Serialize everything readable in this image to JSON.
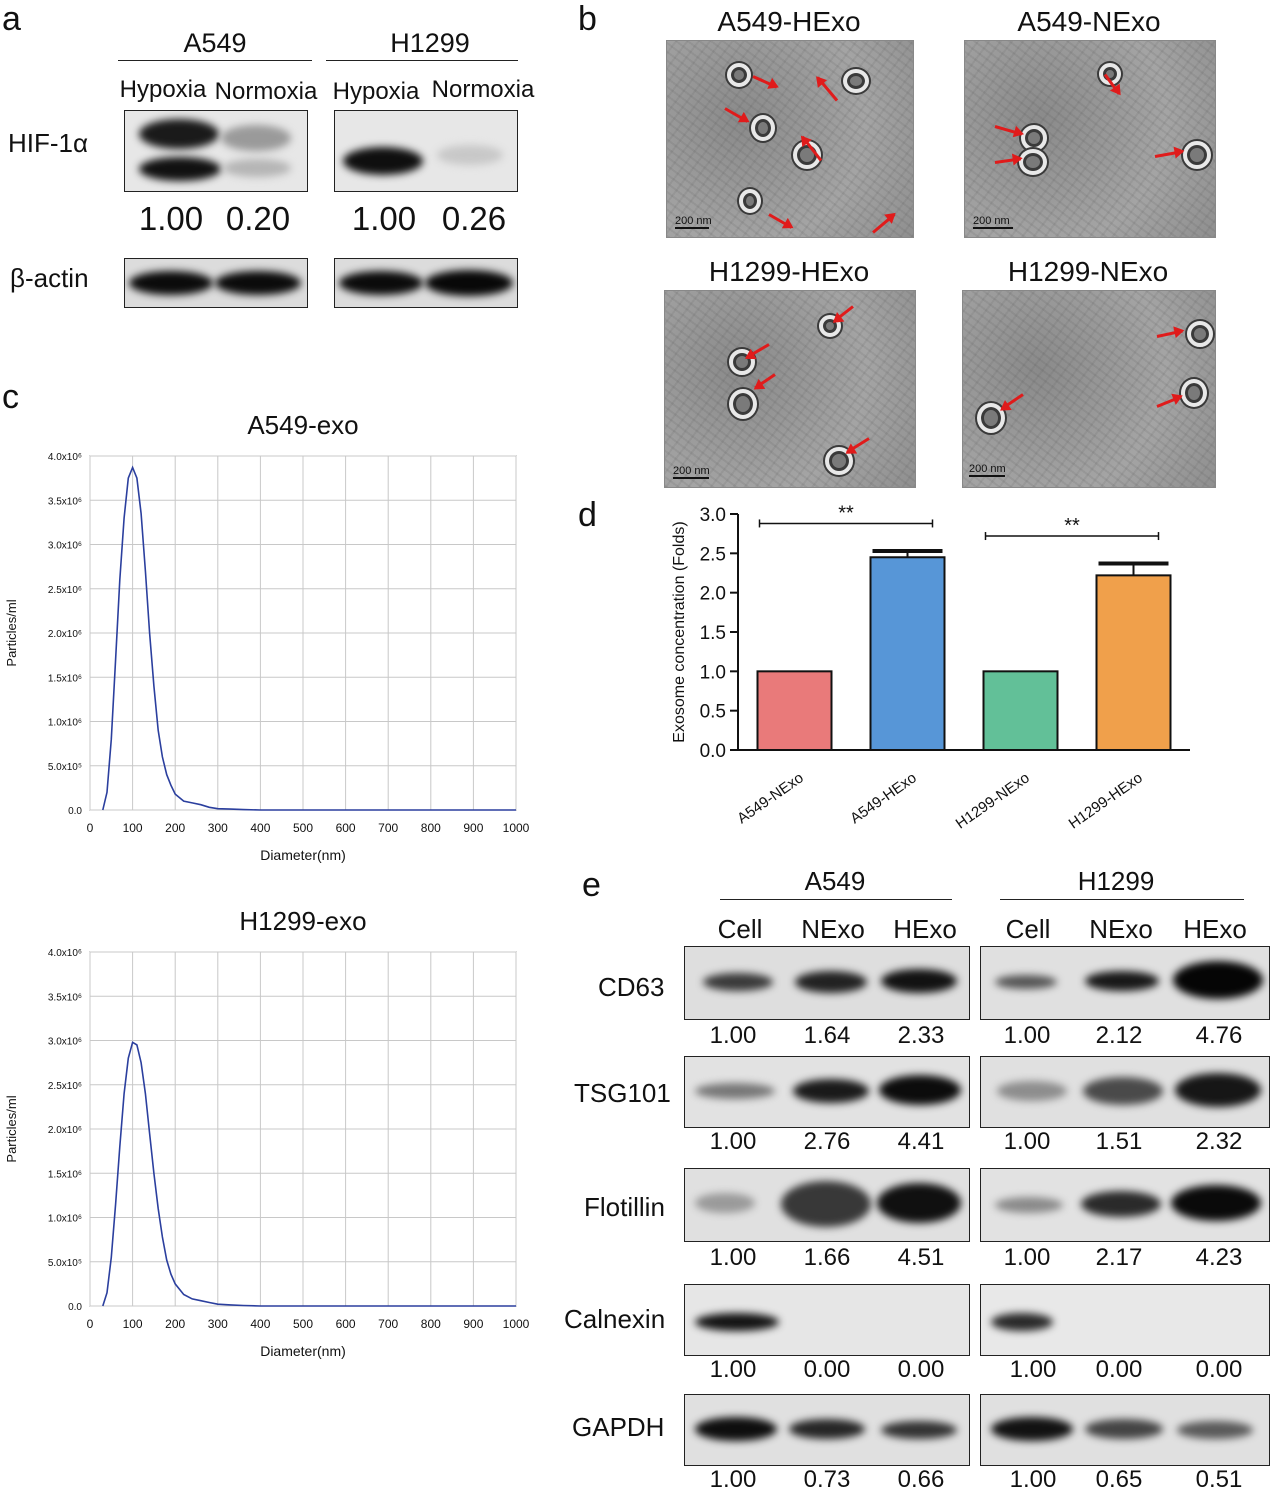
{
  "panel_a": {
    "letter": "a",
    "groups": [
      {
        "name": "A549",
        "conditions": [
          "Hypoxia",
          "Normoxia"
        ],
        "hif_values": [
          "1.00",
          "0.20"
        ]
      },
      {
        "name": "H1299",
        "conditions": [
          "Hypoxia",
          "Normoxia"
        ],
        "hif_values": [
          "1.00",
          "0.26"
        ]
      }
    ],
    "rows": [
      "HIF-1α",
      "β-actin"
    ]
  },
  "panel_b": {
    "letter": "b",
    "images": [
      {
        "title": "A549-HExo",
        "scale": "200 nm"
      },
      {
        "title": "A549-NExo",
        "scale": "200 nm"
      },
      {
        "title": "H1299-HExo",
        "scale": "200 nm"
      },
      {
        "title": "H1299-NExo",
        "scale": "200 nm"
      }
    ]
  },
  "panel_c": {
    "letter": "c"
  },
  "panel_d": {
    "letter": "d"
  },
  "panel_e": {
    "letter": "e",
    "groups": [
      {
        "name": "A549",
        "lanes": [
          "Cell",
          "NExo",
          "HExo"
        ]
      },
      {
        "name": "H1299",
        "lanes": [
          "Cell",
          "NExo",
          "HExo"
        ]
      }
    ],
    "rows": [
      {
        "name": "CD63",
        "a549": [
          "1.00",
          "1.64",
          "2.33"
        ],
        "h1299": [
          "1.00",
          "2.12",
          "4.76"
        ]
      },
      {
        "name": "TSG101",
        "a549": [
          "1.00",
          "2.76",
          "4.41"
        ],
        "h1299": [
          "1.00",
          "1.51",
          "2.32"
        ]
      },
      {
        "name": "Flotillin",
        "a549": [
          "1.00",
          "1.66",
          "4.51"
        ],
        "h1299": [
          "1.00",
          "2.17",
          "4.23"
        ]
      },
      {
        "name": "Calnexin",
        "a549": [
          "1.00",
          "0.00",
          "0.00"
        ],
        "h1299": [
          "1.00",
          "0.00",
          "0.00"
        ]
      },
      {
        "name": "GAPDH",
        "a549": [
          "1.00",
          "0.73",
          "0.66"
        ],
        "h1299": [
          "1.00",
          "0.65",
          "0.51"
        ]
      }
    ]
  },
  "chart_data": [
    {
      "type": "line",
      "title": "A549-exo",
      "xlabel": "Diameter(nm)",
      "ylabel": "Particles/ml",
      "xlim": [
        0,
        1000
      ],
      "ylim": [
        0,
        4000000
      ],
      "x_ticks": [
        0,
        100,
        200,
        300,
        400,
        500,
        600,
        700,
        800,
        900,
        1000
      ],
      "y_tick_labels": [
        "0.0",
        "5.0x10⁵",
        "1.0x10⁶",
        "1.5x10⁶",
        "2.0x10⁶",
        "2.5x10⁶",
        "3.0x10⁶",
        "3.5x10⁶",
        "4.0x10⁶"
      ],
      "grid": true,
      "color": "#2b3f9e",
      "x": [
        30,
        40,
        50,
        60,
        70,
        80,
        90,
        100,
        110,
        120,
        130,
        140,
        150,
        160,
        170,
        180,
        190,
        200,
        220,
        240,
        260,
        280,
        300,
        330,
        360,
        400,
        1000
      ],
      "y": [
        0,
        200000,
        800000,
        1700000,
        2600000,
        3300000,
        3750000,
        3870000,
        3750000,
        3350000,
        2700000,
        2000000,
        1400000,
        900000,
        600000,
        400000,
        280000,
        180000,
        100000,
        80000,
        60000,
        30000,
        15000,
        10000,
        5000,
        0,
        0
      ]
    },
    {
      "type": "line",
      "title": "H1299-exo",
      "xlabel": "Diameter(nm)",
      "ylabel": "Particles/ml",
      "xlim": [
        0,
        1000
      ],
      "ylim": [
        0,
        4000000
      ],
      "x_ticks": [
        0,
        100,
        200,
        300,
        400,
        500,
        600,
        700,
        800,
        900,
        1000
      ],
      "y_tick_labels": [
        "0.0",
        "5.0x10⁵",
        "1.0x10⁶",
        "1.5x10⁶",
        "2.0x10⁶",
        "2.5x10⁶",
        "3.0x10⁶",
        "3.5x10⁶",
        "4.0x10⁶"
      ],
      "grid": true,
      "color": "#2b3f9e",
      "x": [
        30,
        40,
        50,
        60,
        70,
        80,
        90,
        100,
        110,
        120,
        130,
        140,
        150,
        160,
        170,
        180,
        190,
        200,
        220,
        240,
        260,
        280,
        300,
        330,
        360,
        400,
        1000
      ],
      "y": [
        0,
        150000,
        550000,
        1150000,
        1800000,
        2400000,
        2800000,
        2980000,
        2950000,
        2750000,
        2400000,
        1950000,
        1500000,
        1100000,
        780000,
        520000,
        360000,
        250000,
        130000,
        80000,
        60000,
        40000,
        20000,
        12000,
        6000,
        0,
        0
      ]
    },
    {
      "type": "bar",
      "categories": [
        "A549-NExo",
        "A549-HExo",
        "H1299-NExo",
        "H1299-HExo"
      ],
      "values": [
        1.0,
        2.45,
        1.0,
        2.22
      ],
      "errors": [
        0,
        0.08,
        0,
        0.15
      ],
      "colors": [
        "#e97a7a",
        "#5796d7",
        "#62c098",
        "#f0a04b"
      ],
      "ylabel": "Exosome concentration (Folds)",
      "xlabel": "",
      "ylim": [
        0,
        3.0
      ],
      "y_ticks": [
        "0.0",
        "0.5",
        "1.0",
        "1.5",
        "2.0",
        "2.5",
        "3.0"
      ],
      "significance": [
        {
          "from": "A549-NExo",
          "to": "A549-HExo",
          "label": "**"
        },
        {
          "from": "H1299-NExo",
          "to": "H1299-HExo",
          "label": "**"
        }
      ]
    }
  ]
}
